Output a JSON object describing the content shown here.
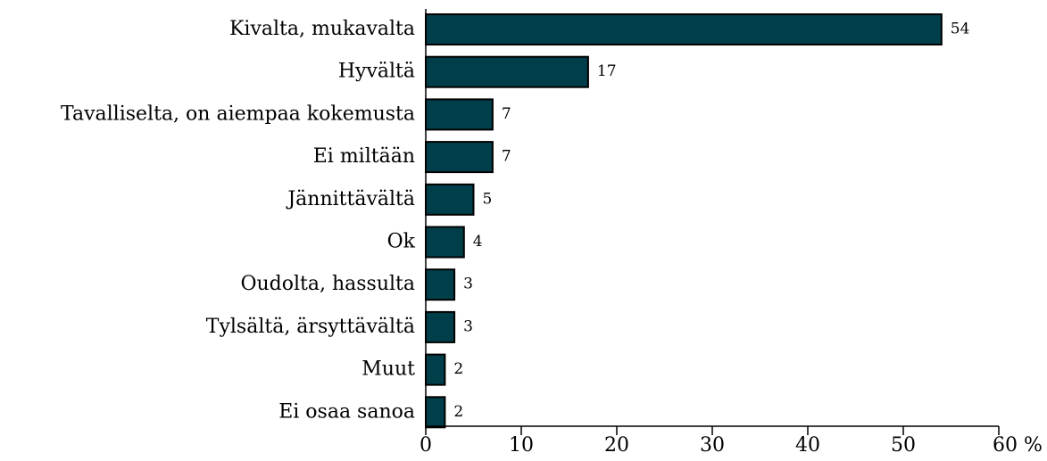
{
  "chart_data": {
    "type": "bar",
    "orientation": "horizontal",
    "categories": [
      "Kivalta, mukavalta",
      "Hyvältä",
      "Tavalliselta, on aiempaa kokemusta",
      "Ei miltään",
      "Jännittävältä",
      "Ok",
      "Oudolta, hassulta",
      "Tylsältä, ärsyttävältä",
      "Muut",
      "Ei osaa sanoa"
    ],
    "values": [
      54,
      17,
      7,
      7,
      5,
      4,
      3,
      3,
      2,
      2
    ],
    "color": "#003f4a",
    "xlim": [
      0,
      60
    ],
    "xticks": [
      0,
      10,
      20,
      30,
      40,
      50,
      {
        "value": 60,
        "label": "60 %"
      }
    ],
    "grid": false
  }
}
